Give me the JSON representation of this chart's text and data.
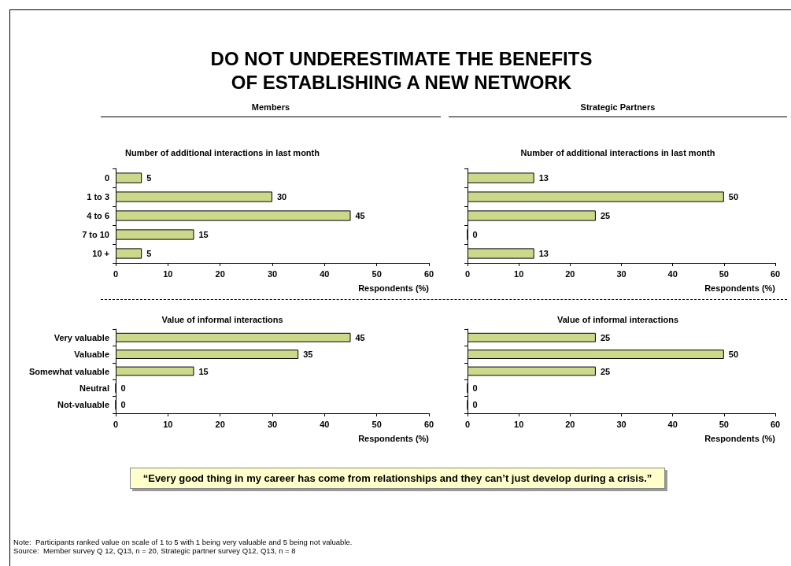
{
  "chart_data": [
    {
      "type": "other",
      "title": "DO NOT UNDERESTIMATE THE BENEFITS\nOF ESTABLISHING A NEW NETWORK",
      "annotations": [
        "“Every good thing in my career has come from relationships and they can’t just develop during a crisis.”",
        "Note:  Participants ranked value on scale of 1 to 5 with 1 being very valuable and 5 being not valuable.",
        "Source:  Member survey Q 12, Q13, n = 20, Strategic partner survey Q12, Q13, n = 8"
      ]
    },
    {
      "type": "bar",
      "orientation": "horizontal",
      "subtitle": "Members",
      "title": "Number of additional interactions in last month",
      "categories": [
        "0",
        "1 to 3",
        "4 to 6",
        "7 to 10",
        "10 +"
      ],
      "values": [
        5,
        30,
        45,
        15,
        5
      ],
      "color": "#ccd98a",
      "xlim": [
        0,
        60
      ],
      "xticks": [
        0,
        10,
        20,
        30,
        40,
        50,
        60
      ],
      "xlabel": "Respondents (%)",
      "data_labels": true
    },
    {
      "type": "bar",
      "orientation": "horizontal",
      "subtitle": "Strategic Partners",
      "title": "Number of additional interactions in last month",
      "categories": [
        null,
        null,
        null,
        null,
        null
      ],
      "values": [
        13,
        50,
        25,
        0,
        13
      ],
      "color": "#ccd98a",
      "xlim": [
        0,
        60
      ],
      "xticks": [
        0,
        10,
        20,
        30,
        40,
        50,
        60
      ],
      "xlabel": "Respondents (%)",
      "data_labels": true
    },
    {
      "type": "bar",
      "orientation": "horizontal",
      "title": "Value of informal interactions",
      "categories": [
        "Very valuable",
        "Valuable",
        "Somewhat valuable",
        "Neutral",
        "Not-valuable"
      ],
      "values": [
        45,
        35,
        15,
        0,
        0
      ],
      "color": "#ccd98a",
      "xlim": [
        0,
        60
      ],
      "xticks": [
        0,
        10,
        20,
        30,
        40,
        50,
        60
      ],
      "xlabel": "Respondents (%)",
      "data_labels": true
    },
    {
      "type": "bar",
      "orientation": "horizontal",
      "title": "Value of informal interactions",
      "categories": [
        null,
        null,
        null,
        null,
        null
      ],
      "values": [
        25,
        50,
        25,
        0,
        0
      ],
      "color": "#ccd98a",
      "xlim": [
        0,
        60
      ],
      "xticks": [
        0,
        10,
        20,
        30,
        40,
        50,
        60
      ],
      "xlabel": "Respondents (%)",
      "data_labels": true
    }
  ]
}
